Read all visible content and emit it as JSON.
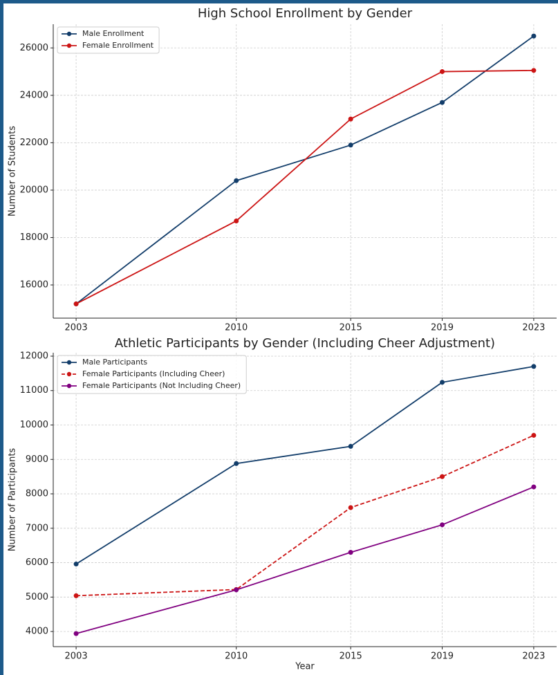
{
  "chart_data": [
    {
      "type": "line",
      "title": "High School Enrollment by Gender",
      "ylabel": "Number of Students",
      "x": [
        2003,
        2010,
        2015,
        2019,
        2023
      ],
      "series": [
        {
          "name": "Male Enrollment",
          "color": "#123d6a",
          "linestyle": "solid",
          "values": [
            15200,
            20400,
            21900,
            23700,
            26500
          ]
        },
        {
          "name": "Female Enrollment",
          "color": "#cc1414",
          "linestyle": "solid",
          "values": [
            15200,
            18700,
            23000,
            25000,
            25050
          ]
        }
      ],
      "xlim": [
        2002,
        2024
      ],
      "xticks": [
        2003,
        2010,
        2015,
        2019,
        2023
      ],
      "ylim": [
        14600,
        27000
      ],
      "yticks": [
        16000,
        18000,
        20000,
        22000,
        24000,
        26000
      ],
      "grid": true,
      "legend": "upper left"
    },
    {
      "type": "line",
      "title": "Athletic Participants by Gender (Including Cheer Adjustment)",
      "xlabel": "Year",
      "ylabel": "Number of Participants",
      "x": [
        2003,
        2010,
        2015,
        2019,
        2023
      ],
      "series": [
        {
          "name": "Male Participants",
          "color": "#123d6a",
          "linestyle": "solid",
          "values": [
            5960,
            8880,
            9380,
            11240,
            11700
          ]
        },
        {
          "name": "Female Participants (Including Cheer)",
          "color": "#cc1414",
          "linestyle": "dashed",
          "values": [
            5040,
            5220,
            7600,
            8500,
            9700
          ]
        },
        {
          "name": "Female Participants (Not Including Cheer)",
          "color": "#800080",
          "linestyle": "solid",
          "values": [
            3940,
            5210,
            6300,
            7100,
            8200
          ]
        }
      ],
      "xlim": [
        2002,
        2024
      ],
      "xticks": [
        2003,
        2010,
        2015,
        2019,
        2023
      ],
      "ylim": [
        3560,
        12100
      ],
      "yticks": [
        4000,
        5000,
        6000,
        7000,
        8000,
        9000,
        10000,
        11000,
        12000
      ],
      "grid": true,
      "legend": "upper left"
    }
  ]
}
